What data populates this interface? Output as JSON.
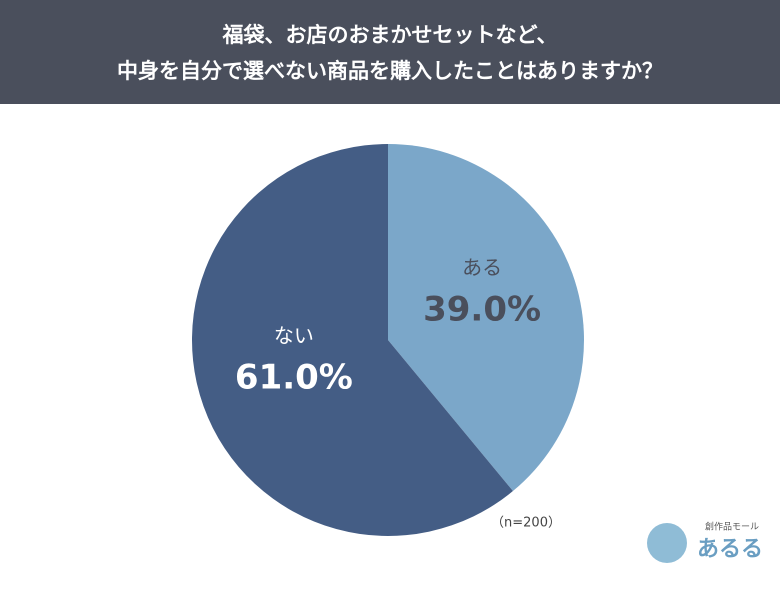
{
  "chart_data": {
    "type": "pie",
    "title": [
      "福袋、お店のおまかせセットなど、",
      "中身を自分で選べない商品を購入したことはありますか？"
    ],
    "categories": [
      "ある",
      "ない"
    ],
    "values": [
      39,
      61
    ],
    "value_labels": [
      "39.0%",
      "61.0%"
    ],
    "colors": [
      "#7ba7c9",
      "#445d85"
    ],
    "label_colors": [
      "#4a4f5c",
      "#ffffff"
    ],
    "note": "（n=200）"
  },
  "logo": {
    "tagline": "創作品モール",
    "name": "あるる"
  }
}
